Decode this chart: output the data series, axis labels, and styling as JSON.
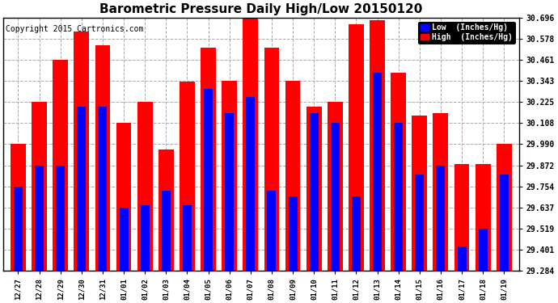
{
  "title": "Barometric Pressure Daily High/Low 20150120",
  "copyright": "Copyright 2015 Cartronics.com",
  "legend_low": "Low  (Inches/Hg)",
  "legend_high": "High  (Inches/Hg)",
  "ylabel_right": [
    "30.696",
    "30.578",
    "30.461",
    "30.343",
    "30.225",
    "30.108",
    "29.990",
    "29.872",
    "29.754",
    "29.637",
    "29.519",
    "29.401",
    "29.284"
  ],
  "ylim": [
    29.284,
    30.696
  ],
  "dates": [
    "12/27",
    "12/28",
    "12/29",
    "12/30",
    "12/31",
    "01/01",
    "01/02",
    "01/03",
    "01/04",
    "01/05",
    "01/06",
    "01/07",
    "01/08",
    "01/09",
    "01/10",
    "01/11",
    "01/12",
    "01/13",
    "01/14",
    "01/15",
    "01/16",
    "01/17",
    "01/18",
    "01/19"
  ],
  "high": [
    29.99,
    30.225,
    30.461,
    30.62,
    30.54,
    30.108,
    30.225,
    29.96,
    30.34,
    30.53,
    30.343,
    30.696,
    30.53,
    30.343,
    30.2,
    30.225,
    30.66,
    30.68,
    30.39,
    30.15,
    30.165,
    29.88,
    29.88,
    29.99
  ],
  "low": [
    29.754,
    29.872,
    29.872,
    30.2,
    30.2,
    29.637,
    29.65,
    29.73,
    29.65,
    30.3,
    30.165,
    30.255,
    29.73,
    29.7,
    30.165,
    30.108,
    29.7,
    30.39,
    30.108,
    29.82,
    29.872,
    29.42,
    29.52,
    29.82
  ],
  "low_color": "#0000ff",
  "high_color": "#ff0000",
  "bg_color": "#ffffff",
  "grid_color": "#aaaaaa",
  "title_fontsize": 11,
  "copyright_fontsize": 7
}
